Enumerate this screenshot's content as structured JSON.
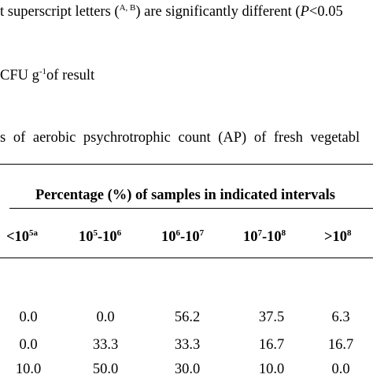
{
  "text": {
    "line1_a": "t superscript letters (",
    "line1_sup": "A, B",
    "line1_b": ") are significantly different (",
    "line1_p": "P",
    "line1_c": "<0.05",
    "line2_a": "CFU g",
    "line2_sup": "-1",
    "line2_b": "of result",
    "line3": "s of aerobic psychrotrophic count (AP) of fresh vegetabl"
  },
  "table": {
    "spanning_header": "Percentage (%) of samples in indicated intervals",
    "columns": [
      {
        "base": "<10",
        "sup": "5a"
      },
      {
        "base": "10",
        "sup": "5",
        "mid": "-10",
        "sup2": "6"
      },
      {
        "base": "10",
        "sup": "6",
        "mid": "-10",
        "sup2": "7"
      },
      {
        "base": "10",
        "sup": "7",
        "mid": "-10",
        "sup2": "8"
      },
      {
        "base": ">10",
        "sup": "8"
      }
    ],
    "rows": [
      [
        "0.0",
        "0.0",
        "56.2",
        "37.5",
        "6.3"
      ],
      [
        "0.0",
        "33.3",
        "33.3",
        "16.7",
        "16.7"
      ],
      [
        "10.0",
        "50.0",
        "30.0",
        "10.0",
        "0.0"
      ]
    ]
  }
}
